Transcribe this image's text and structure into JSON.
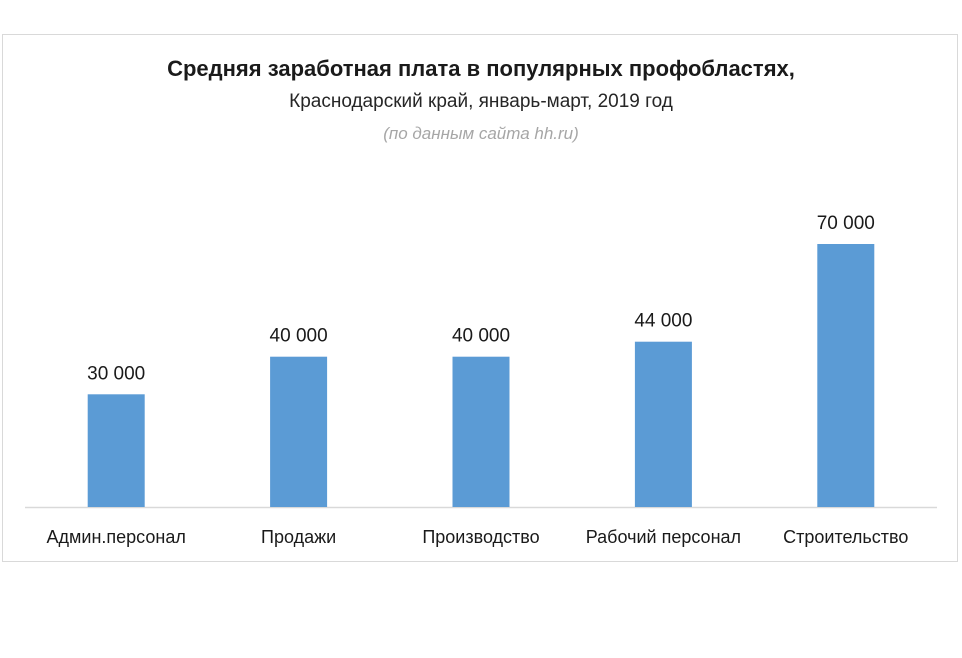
{
  "chart_data": {
    "type": "bar",
    "title": "Средняя заработная плата в популярных профобластях,",
    "subtitle": "Краснодарский край, январь-март, 2019 год",
    "source_note": "(по данным сайта hh.ru)",
    "categories": [
      "Админ.персонал",
      "Продажи",
      "Производство",
      "Рабочий персонал",
      "Строительство"
    ],
    "values": [
      30000,
      40000,
      40000,
      44000,
      70000
    ],
    "data_labels": [
      "30 000",
      "40 000",
      "40 000",
      "44 000",
      "70 000"
    ],
    "bar_color": "#5b9bd5",
    "ylim": [
      0,
      75000
    ],
    "grid": false,
    "legend": "none",
    "xlabel": "",
    "ylabel": ""
  }
}
